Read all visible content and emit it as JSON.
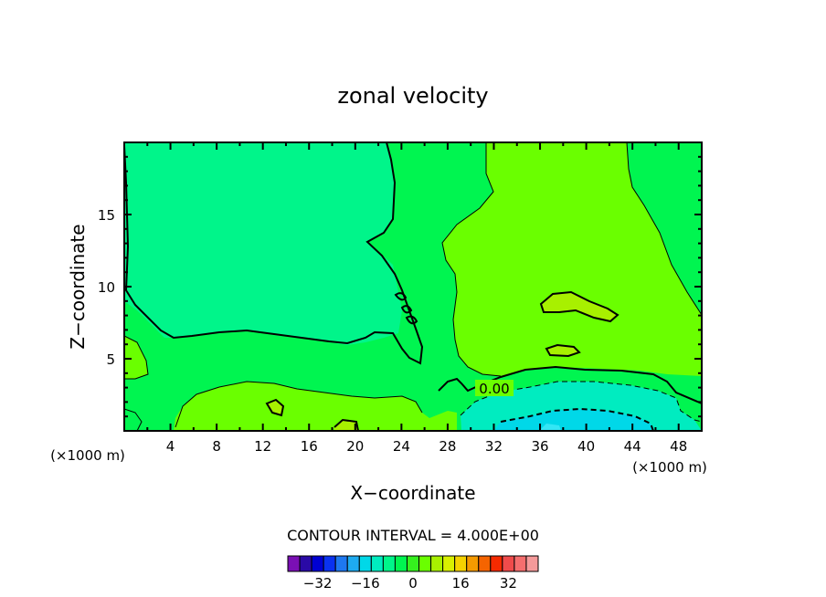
{
  "chart_data": {
    "type": "contour",
    "title": "zonal velocity",
    "xlabel": "X−coordinate",
    "ylabel": "Z−coordinate",
    "x_unit": "(×1000 m)",
    "y_unit": "(×1000 m)",
    "xlim": [
      0,
      50
    ],
    "ylim": [
      0,
      20
    ],
    "x_ticks": [
      4,
      8,
      12,
      16,
      20,
      24,
      28,
      32,
      36,
      40,
      44,
      48
    ],
    "y_ticks": [
      5,
      10,
      15
    ],
    "contour_interval_text": "CONTOUR INTERVAL = 4.000E+00",
    "contour_interval": 4,
    "contour_line_labels": [
      {
        "text": "0.00",
        "x": 31.6,
        "y": 3.0
      }
    ],
    "colorbar": {
      "colors": [
        "#7a0fb4",
        "#2a0aa6",
        "#0000d2",
        "#0a32f0",
        "#1e78f0",
        "#1eaaf0",
        "#00d8e8",
        "#00ecc0",
        "#00f58a",
        "#00f550",
        "#35f01e",
        "#6aff00",
        "#a8f000",
        "#d8f000",
        "#f5d200",
        "#f59a00",
        "#f56400",
        "#f52a00",
        "#f04b4b",
        "#f56e6e",
        "#f59a9a"
      ],
      "tick_labels": [
        "−32",
        "−16",
        "0",
        "16",
        "32"
      ],
      "tick_values": [
        -32,
        -16,
        0,
        16,
        32
      ],
      "range": [
        -42,
        42
      ]
    },
    "regions": [
      {
        "color": "#00f550",
        "level": "0 to 4",
        "area": "lower-left and upper-right background"
      },
      {
        "color": "#00f58a",
        "level": "-4 to 0",
        "area": "upper-left block"
      },
      {
        "color": "#6aff00",
        "level": "4 to 8",
        "area": "right-center wedge and lower-left band"
      },
      {
        "color": "#a8f000",
        "level": "8 to 12",
        "area": "small patches"
      },
      {
        "color": "#00ecc0",
        "level": "-8 to -4",
        "area": "bottom right"
      },
      {
        "color": "#00d8e8",
        "level": "-12 to -8",
        "area": "bottom right core"
      }
    ]
  }
}
